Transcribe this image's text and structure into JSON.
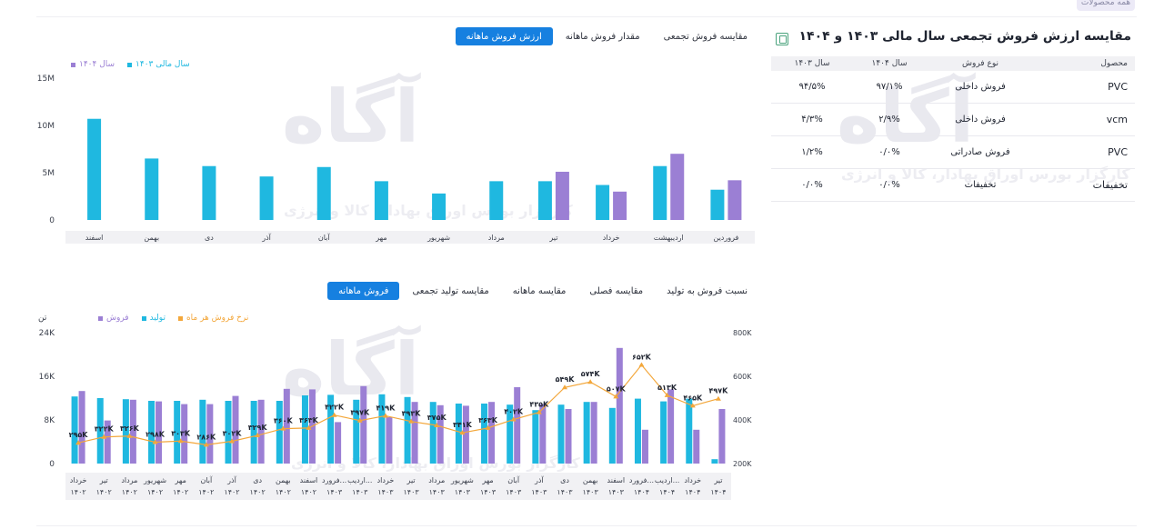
{
  "top_badge": "همه محصولات",
  "watermark": {
    "logo": "آگاه",
    "sub": "کارگزار بورس اوراق بهادار، کالا و انرژی"
  },
  "top_tabs": [
    {
      "label": "ارزش فروش ماهانه",
      "active": true
    },
    {
      "label": "مقدار فروش ماهانه",
      "active": false
    },
    {
      "label": "مقایسه فروش تجمعی",
      "active": false
    }
  ],
  "bottom_tabs": [
    {
      "label": "فروش ماهانه",
      "active": true
    },
    {
      "label": "مقایسه تولید تجمعی",
      "active": false
    },
    {
      "label": "مقایسه ماهانه",
      "active": false
    },
    {
      "label": "مقایسه فصلی",
      "active": false
    },
    {
      "label": "نسبت فروش به تولید",
      "active": false
    }
  ],
  "table": {
    "title": "مقایسه ارزش فروش تجمعی سال مالی ۱۴۰۳ و ۱۴۰۴",
    "headers": [
      "محصول",
      "نوع فروش",
      "سال ۱۴۰۴",
      "سال ۱۴۰۳"
    ],
    "rows": [
      [
        "PVC",
        "فروش داخلی",
        "۹۷/۱%",
        "۹۴/۵%"
      ],
      [
        "vcm",
        "فروش داخلی",
        "۲/۹%",
        "۴/۳%"
      ],
      [
        "PVC",
        "فروش صادراتی",
        "۰/۰%",
        "۱/۲%"
      ],
      [
        "تخفیفات",
        "تخفیفات",
        "۰/۰%",
        "۰/۰%"
      ]
    ]
  },
  "chart_top": {
    "legend": [
      "سال ۱۴۰۴",
      "سال مالی ۱۴۰۳"
    ],
    "colors": {
      "y1404": "#9b7fd4",
      "y1403": "#1fb8e0"
    }
  },
  "chart_bottom": {
    "legend": [
      "فروش",
      "تولید",
      "نرخ فروش هر ماه"
    ],
    "left_unit": "تن",
    "colors": {
      "sales": "#9b7fd4",
      "production": "#1fb8e0",
      "rate": "#f3a73b"
    }
  },
  "chart_data": [
    {
      "type": "bar",
      "categories": [
        "فروردین",
        "اردیبهشت",
        "خرداد",
        "تیر",
        "مرداد",
        "شهریور",
        "مهر",
        "آبان",
        "آذر",
        "دی",
        "بهمن",
        "اسفند"
      ],
      "series": [
        {
          "name": "سال مالی ۱۴۰۳",
          "values": [
            3.2,
            5.7,
            3.7,
            4.1,
            4.1,
            2.8,
            4.1,
            5.6,
            4.6,
            5.7,
            6.5,
            10.7
          ]
        },
        {
          "name": "سال ۱۴۰۴",
          "values": [
            4.2,
            7.0,
            3.0,
            5.1,
            null,
            null,
            null,
            null,
            null,
            null,
            null,
            null
          ]
        }
      ],
      "yticks": [
        "0",
        "5M",
        "10M",
        "15M"
      ],
      "ylim": [
        0,
        15
      ]
    },
    {
      "type": "bar+line",
      "categories": [
        [
          "خرداد",
          "۱۴۰۲"
        ],
        [
          "تیر",
          "۱۴۰۲"
        ],
        [
          "مرداد",
          "۱۴۰۲"
        ],
        [
          "شهریور",
          "۱۴۰۲"
        ],
        [
          "مهر",
          "۱۴۰۲"
        ],
        [
          "آبان",
          "۱۴۰۲"
        ],
        [
          "آذر",
          "۱۴۰۲"
        ],
        [
          "دی",
          "۱۴۰۲"
        ],
        [
          "بهمن",
          "۱۴۰۲"
        ],
        [
          "اسفند",
          "۱۴۰۲"
        ],
        [
          "فرورد...",
          "۱۴۰۳"
        ],
        [
          "اردیب...",
          "۱۴۰۳"
        ],
        [
          "خرداد",
          "۱۴۰۳"
        ],
        [
          "تیر",
          "۱۴۰۳"
        ],
        [
          "مرداد",
          "۱۴۰۳"
        ],
        [
          "شهریور",
          "۱۴۰۳"
        ],
        [
          "مهر",
          "۱۴۰۳"
        ],
        [
          "آبان",
          "۱۴۰۳"
        ],
        [
          "آذر",
          "۱۴۰۳"
        ],
        [
          "دی",
          "۱۴۰۳"
        ],
        [
          "بهمن",
          "۱۴۰۳"
        ],
        [
          "اسفند",
          "۱۴۰۳"
        ],
        [
          "فرورد...",
          "۱۴۰۴"
        ],
        [
          "اردیب...",
          "۱۴۰۴"
        ],
        [
          "خرداد",
          "۱۴۰۴"
        ],
        [
          "تیر",
          "۱۴۰۴"
        ]
      ],
      "series": [
        {
          "name": "تولید",
          "values": [
            12.3,
            12.0,
            11.8,
            11.5,
            11.5,
            11.7,
            11.5,
            11.5,
            11.5,
            12.5,
            12.6,
            11.7,
            12.7,
            12.2,
            11.3,
            11.0,
            11.0,
            10.8,
            9.8,
            10.8,
            11.3,
            10.2,
            11.9,
            11.4,
            11.9,
            0.8
          ]
        },
        {
          "name": "فروش",
          "values": [
            13.3,
            7.9,
            11.7,
            11.4,
            10.9,
            10.9,
            12.4,
            11.7,
            13.7,
            13.6,
            7.6,
            14.2,
            8.5,
            11.3,
            10.7,
            10.6,
            11.3,
            14.0,
            10.9,
            10.0,
            11.3,
            21.2,
            6.2,
            13.6,
            6.2,
            10.0
          ]
        },
        {
          "name": "نرخ فروش هر ماه",
          "values": [
            295,
            322,
            326,
            298,
            303,
            286,
            302,
            329,
            360,
            363,
            422,
            397,
            419,
            393,
            375,
            341,
            363,
            402,
            435,
            549,
            574,
            507,
            652,
            513,
            465,
            497
          ],
          "labels": [
            "۲۹۵K",
            "۳۲۲K",
            "۳۲۶K",
            "۲۹۸K",
            "۳۰۳K",
            "۲۸۶K",
            "۳۰۲K",
            "۳۲۹K",
            "۳۶۰K",
            "۳۶۳K",
            "۴۲۲K",
            "۳۹۷K",
            "۴۱۹K",
            "۳۹۳K",
            "۳۷۵K",
            "۳۴۱K",
            "۳۶۳K",
            "۴۰۲K",
            "۴۳۵K",
            "۵۴۹K",
            "۵۷۴K",
            "۵۰۷K",
            "۶۵۲K",
            "۵۱۳K",
            "۴۶۵K",
            "۴۹۷K"
          ]
        }
      ],
      "yticks_left": [
        "0",
        "8K",
        "16K",
        "24K"
      ],
      "ylim_left": [
        0,
        24
      ],
      "yticks_right": [
        "200K",
        "400K",
        "600K",
        "800K"
      ],
      "ylim_right": [
        200,
        800
      ]
    }
  ]
}
